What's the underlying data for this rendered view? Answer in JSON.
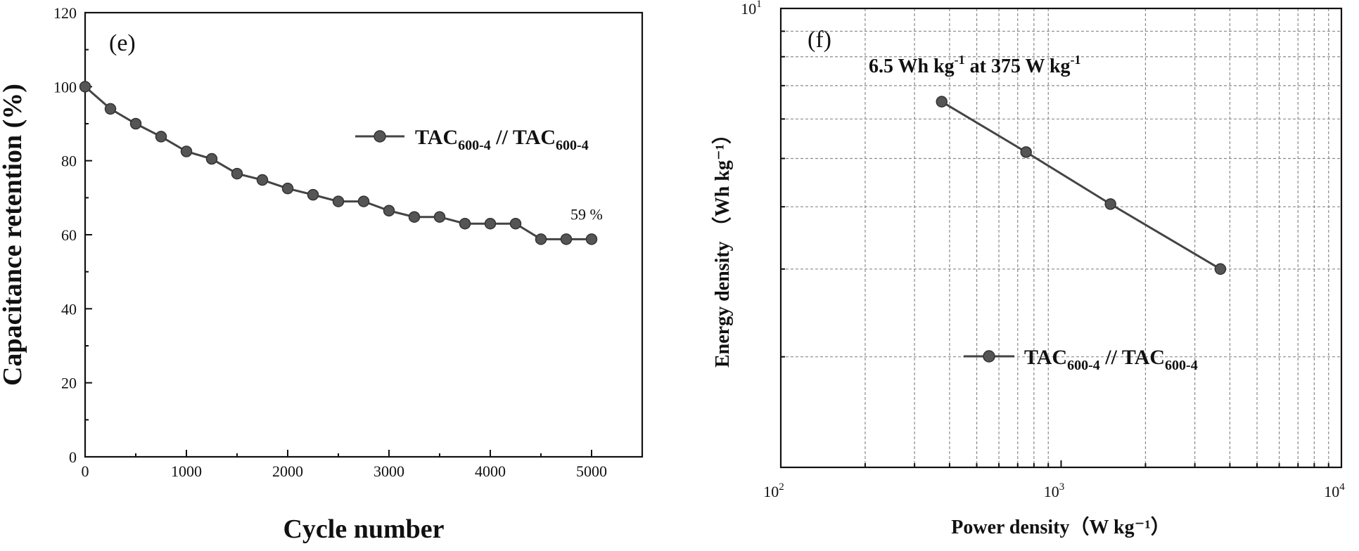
{
  "chart_data": [
    {
      "type": "line",
      "panel_label": "(e)",
      "xlabel": "Cycle number",
      "ylabel": "Capacitance retention (%)",
      "xlim": [
        0,
        5500
      ],
      "ylim": [
        0,
        120
      ],
      "xticks": [
        0,
        1000,
        2000,
        3000,
        4000,
        5000
      ],
      "yticks": [
        0,
        20,
        40,
        60,
        80,
        100,
        120
      ],
      "grid": false,
      "legend_position": "right-middle",
      "series": [
        {
          "name": "TAC600-4 // TAC600-4",
          "legend_parts": [
            "TAC",
            "600-4",
            " // TAC",
            "600-4"
          ],
          "x": [
            0,
            250,
            500,
            750,
            1000,
            1250,
            1500,
            1750,
            2000,
            2250,
            2500,
            2750,
            3000,
            3250,
            3500,
            3750,
            4000,
            4250,
            4500,
            4750,
            5000
          ],
          "y": [
            100,
            94,
            90,
            86.5,
            82.5,
            80.5,
            76.5,
            74.8,
            72.5,
            70.8,
            69,
            69,
            66.5,
            64.8,
            64.8,
            63,
            63,
            63,
            58.8,
            58.8,
            58.8
          ]
        }
      ],
      "annotations": [
        {
          "text": "59 %",
          "x": 5000,
          "y": 58.8
        }
      ]
    },
    {
      "type": "line",
      "scale": "log-log",
      "panel_label": "(f)",
      "xlabel": "Power density（W kg⁻¹）",
      "ylabel": "Energy density （Wh kg⁻¹）",
      "xlim": [
        100,
        10000
      ],
      "ylim": [
        1.2,
        10
      ],
      "xtick_labels": [
        {
          "base": "10",
          "exp": "2",
          "value": 100
        },
        {
          "base": "10",
          "exp": "3",
          "value": 1000
        },
        {
          "base": "10",
          "exp": "4",
          "value": 10000
        }
      ],
      "ytick_labels": [
        {
          "base": "10",
          "exp": "1",
          "value": 10
        }
      ],
      "grid": true,
      "legend_position": "lower-middle",
      "series": [
        {
          "name": "TAC600-4 // TAC600-4",
          "legend_parts": [
            "TAC",
            "600-4",
            " // TAC",
            "600-4"
          ],
          "x": [
            375,
            750,
            1500,
            3700
          ],
          "y": [
            6.5,
            5.15,
            4.05,
            3.0
          ]
        }
      ],
      "annotations": [
        {
          "parts": [
            "6.5 Wh kg",
            "-1",
            " at 375 W kg",
            "-1"
          ],
          "x": 375,
          "y": 6.5
        }
      ]
    }
  ]
}
